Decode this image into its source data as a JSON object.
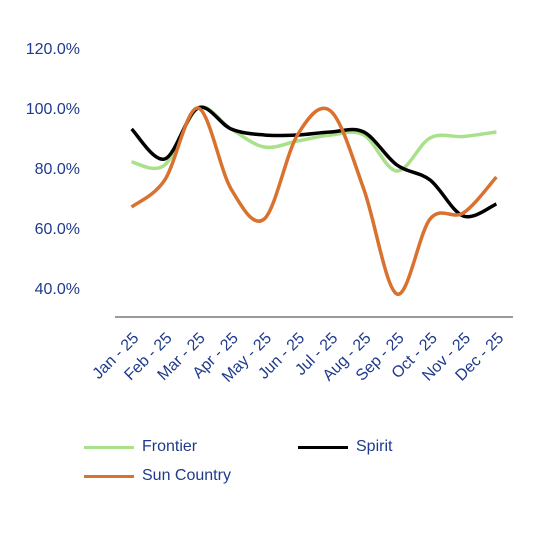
{
  "chart_data": {
    "type": "line",
    "categories": [
      "Jan - 25",
      "Feb - 25",
      "Mar - 25",
      "Apr - 25",
      "May - 25",
      "Jun - 25",
      "Jul - 25",
      "Aug - 25",
      "Sep - 25",
      "Oct - 25",
      "Nov - 25",
      "Dec - 25"
    ],
    "y_ticks": [
      "120.0%",
      "100.0%",
      "80.0%",
      "60.0%",
      "40.0%"
    ],
    "y_tick_values": [
      120,
      100,
      80,
      60,
      40
    ],
    "ylim": [
      30,
      120
    ],
    "grid": false,
    "legend_position": "bottom",
    "series": [
      {
        "name": "Frontier",
        "color": "#a9e08a",
        "values": [
          82,
          81,
          100,
          93,
          87,
          89,
          91,
          91,
          79,
          90,
          90.5,
          92
        ]
      },
      {
        "name": "Spirit",
        "color": "#000000",
        "values": [
          93,
          83,
          100,
          93,
          91,
          91,
          92,
          92,
          81,
          76,
          64,
          68
        ]
      },
      {
        "name": "Sun Country",
        "color": "#d9712f",
        "values": [
          67,
          76,
          100,
          73,
          63,
          91,
          99,
          73,
          38,
          63,
          65,
          77
        ]
      }
    ]
  }
}
